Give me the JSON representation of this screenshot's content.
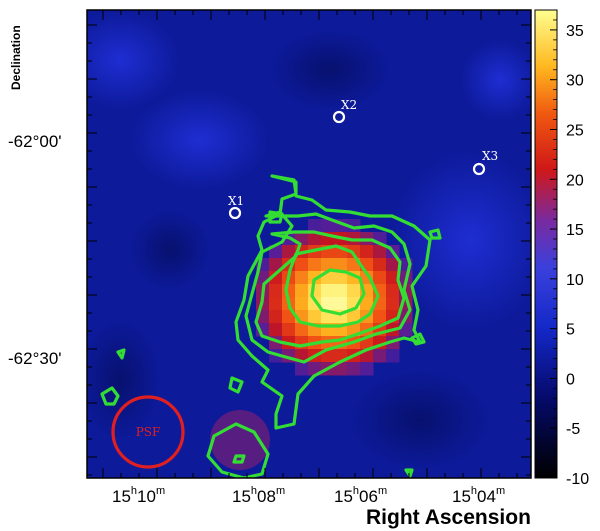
{
  "axes": {
    "x_title": "Right Ascension",
    "y_title": "Declination",
    "ra_ticks": [
      {
        "h": "15",
        "m": "10"
      },
      {
        "h": "15",
        "m": "08"
      },
      {
        "h": "15",
        "m": "06"
      },
      {
        "h": "15",
        "m": "04"
      }
    ],
    "dec_ticks": [
      "-62°00'",
      "-62°30'"
    ]
  },
  "colorbar": {
    "ticks": [
      "35",
      "30",
      "25",
      "20",
      "15",
      "10",
      "5",
      "0",
      "-5",
      "-10"
    ],
    "range": [
      -10,
      37
    ]
  },
  "sources": [
    {
      "label": "X1"
    },
    {
      "label": "X2"
    },
    {
      "label": "X3"
    }
  ],
  "psf_label": "PSF",
  "colors": {
    "contour": "#33dd33",
    "psf_circle": "#e02020",
    "source_marker": "#ffffff"
  }
}
